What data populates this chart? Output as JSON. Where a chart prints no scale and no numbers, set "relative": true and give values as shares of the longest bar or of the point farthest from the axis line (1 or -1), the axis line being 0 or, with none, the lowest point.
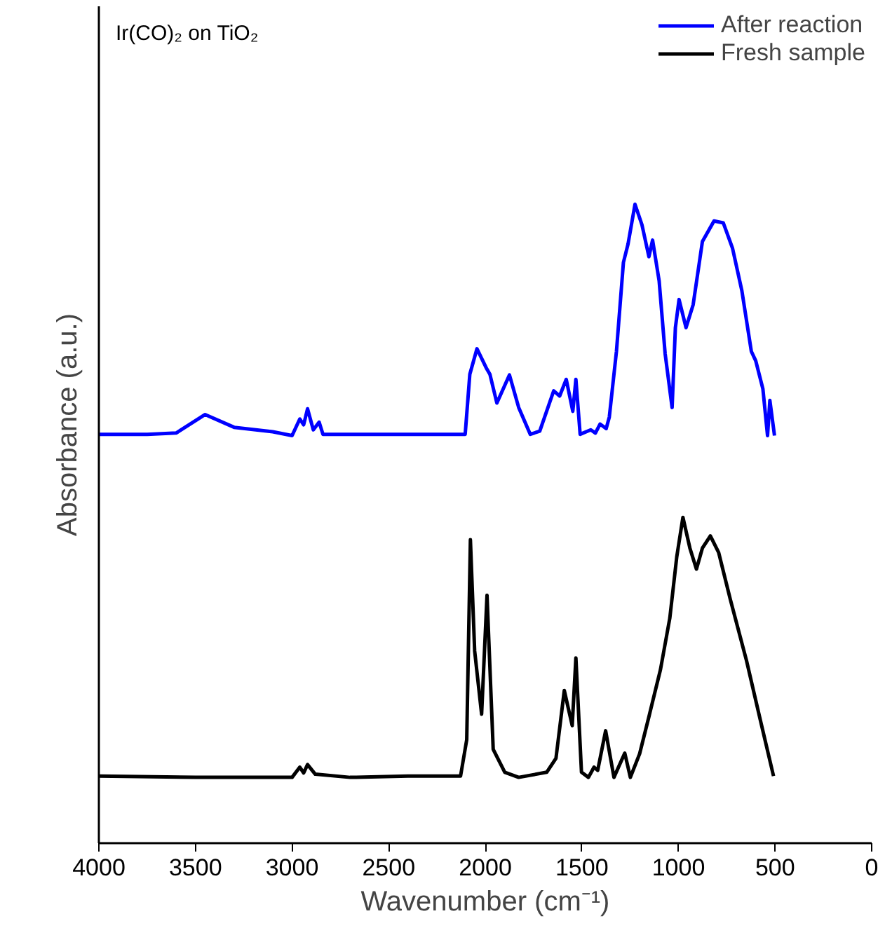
{
  "chart_data": {
    "type": "line",
    "relative": true,
    "xlabel": "Wavenumber (cm⁻¹)",
    "ylabel": "Absorbance (a.u.)",
    "annotations": [
      "Ir(CO)₂ on TiO₂"
    ],
    "xlim": [
      4000,
      0
    ],
    "xticks": [
      4000,
      3500,
      3000,
      2500,
      2000,
      1500,
      1000,
      500,
      0
    ],
    "grid": false,
    "legend": "top right",
    "line_style": "solid",
    "marker": "none",
    "series": [
      {
        "name": "After reaction",
        "color": "#0000ff",
        "x": [
          4000,
          3750,
          3600,
          3450,
          3300,
          3100,
          3000,
          2960,
          2940,
          2920,
          2890,
          2860,
          2840,
          2104,
          2080,
          2043,
          1995,
          1976,
          1940,
          1875,
          1827,
          1767,
          1718,
          1646,
          1615,
          1581,
          1547,
          1531,
          1509,
          1454,
          1430,
          1406,
          1374,
          1358,
          1321,
          1285,
          1261,
          1225,
          1189,
          1153,
          1134,
          1100,
          1069,
          1033,
          1016,
          997,
          961,
          924,
          876,
          816,
          768,
          720,
          672,
          623,
          600,
          563,
          539,
          527,
          503
        ],
        "values": [
          0.64,
          0.64,
          0.642,
          0.671,
          0.651,
          0.644,
          0.638,
          0.664,
          0.655,
          0.68,
          0.647,
          0.659,
          0.64,
          0.64,
          0.734,
          0.774,
          0.744,
          0.734,
          0.689,
          0.733,
          0.682,
          0.64,
          0.645,
          0.708,
          0.7,
          0.726,
          0.676,
          0.726,
          0.64,
          0.647,
          0.642,
          0.656,
          0.649,
          0.667,
          0.77,
          0.909,
          0.938,
          1.0,
          0.968,
          0.918,
          0.944,
          0.88,
          0.766,
          0.682,
          0.807,
          0.851,
          0.807,
          0.843,
          0.942,
          0.974,
          0.971,
          0.931,
          0.865,
          0.77,
          0.755,
          0.711,
          0.638,
          0.693,
          0.638
        ]
      },
      {
        "name": "Fresh sample",
        "color": "#000000",
        "x": [
          4000,
          3500,
          3000,
          2960,
          2940,
          2920,
          2880,
          2700,
          2400,
          2128,
          2096,
          2077,
          2055,
          2019,
          1991,
          1959,
          1899,
          1827,
          1682,
          1634,
          1591,
          1550,
          1531,
          1502,
          1466,
          1437,
          1418,
          1377,
          1334,
          1278,
          1249,
          1201,
          1153,
          1093,
          1045,
          1009,
          977,
          941,
          907,
          876,
          835,
          792,
          732,
          648,
          575,
          508
        ],
        "values": [
          0.105,
          0.103,
          0.103,
          0.119,
          0.11,
          0.123,
          0.108,
          0.103,
          0.105,
          0.105,
          0.162,
          0.475,
          0.301,
          0.202,
          0.388,
          0.147,
          0.111,
          0.103,
          0.111,
          0.133,
          0.239,
          0.184,
          0.29,
          0.111,
          0.103,
          0.119,
          0.114,
          0.176,
          0.103,
          0.141,
          0.103,
          0.14,
          0.198,
          0.272,
          0.352,
          0.448,
          0.51,
          0.462,
          0.429,
          0.462,
          0.481,
          0.455,
          0.382,
          0.286,
          0.191,
          0.105
        ]
      }
    ]
  }
}
